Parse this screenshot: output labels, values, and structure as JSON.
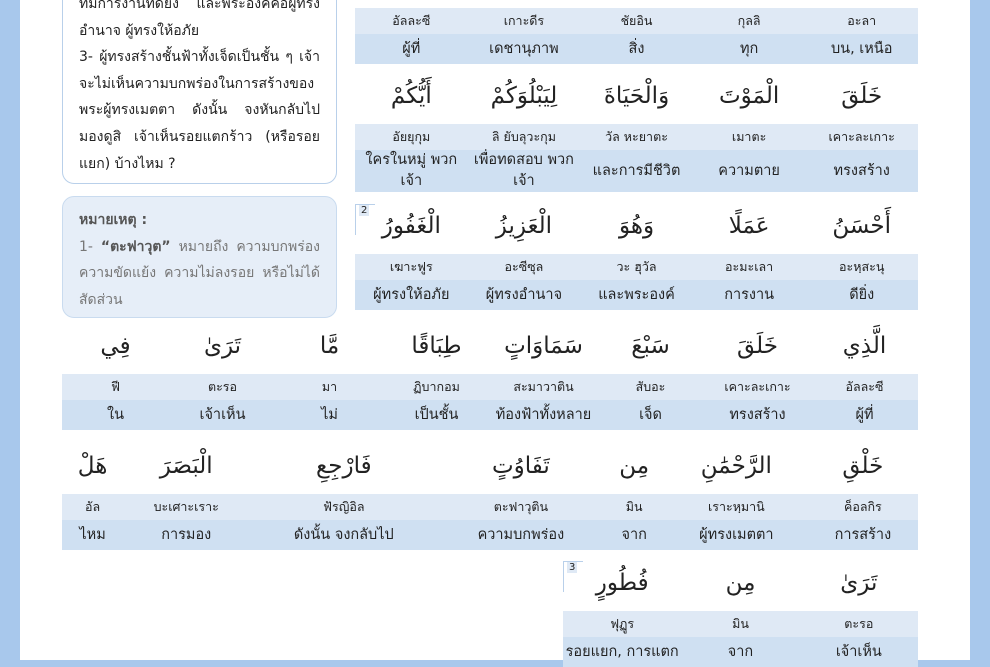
{
  "left_box": {
    "lines": [
      "ทีมีการงานที่ดียิ่ง และพระองค์คือผู้ทรง",
      "อำนาจ ผู้ทรงให้อภัย",
      "3- ผู้ทรงสร้างชั้นฟ้าทั้งเจ็ดเป็นชั้น ๆ เจ้า",
      "จะไม่เห็นความบกพร่องในการสร้างของ",
      "พระผู้ทรงเมตตา ดังนั้น จงหันกลับไป",
      "มองดูสิ เจ้าเห็นรอยแตกร้าว (หรือรอย",
      "แยก) บ้างไหม ?"
    ]
  },
  "note": {
    "title": "หมายเหตุ :",
    "number": "1-",
    "term": "“ตะฟาวุต”",
    "text": "หมายถึง ความบกพร่อง ความขัดแย้ง ความไม่ลงรอย หรือไม่ได้สัดส่วน"
  },
  "blocks": [
    {
      "translit": [
        "อะลา",
        "กุลลิ",
        "ชัยอิน",
        "เกาะดีร",
        "อัลละซี"
      ],
      "meaning": [
        "บน, เหนือ",
        "ทุก",
        "สิ่ง",
        "เดชานุภาพ",
        "ผู้ที่"
      ]
    },
    {
      "arabic": [
        "خَلَقَ",
        "الْمَوْتَ",
        "وَالْحَيَاةَ",
        "لِيَبْلُوَكُمْ",
        "أَيُّكُمْ"
      ],
      "translit": [
        "เคาะละเกาะ",
        "เมาตะ",
        "วัล หะยาตะ",
        "ลิ ยับลุวะกุม",
        "อัยยุกุม"
      ],
      "meaning": [
        "ทรงสร้าง",
        "ความตาย",
        "และการมีชีวิต",
        "เพื่อทดสอบ พวกเจ้า",
        "ใครในหมู่ พวกเจ้า"
      ]
    },
    {
      "verse": "2",
      "arabic": [
        "أَحْسَنُ",
        "عَمَلًا",
        "وَهُوَ",
        "الْعَزِيزُ",
        "الْغَفُورُ"
      ],
      "translit": [
        "อะหฺสะนุ",
        "อะมะเลา",
        "วะ ฮุวัล",
        "อะซีซุล",
        "เฆาะฟูร"
      ],
      "meaning": [
        "ดียิ่ง",
        "การงาน",
        "และพระองค์",
        "ผู้ทรงอำนาจ",
        "ผู้ทรงให้อภัย"
      ]
    },
    {
      "arabic": [
        "الَّذِي",
        "خَلَقَ",
        "سَبْعَ",
        "سَمَاوَاتٍ",
        "طِبَاقًا",
        "مَّا",
        "تَرَىٰ",
        "فِي"
      ],
      "translit": [
        "อัลละซี",
        "เคาะละเกาะ",
        "สับอะ",
        "สะมาวาติน",
        "ฏิบากอม",
        "มา",
        "ตะรอ",
        "ฟี"
      ],
      "meaning": [
        "ผู้ที่",
        "ทรงสร้าง",
        "เจ็ด",
        "ท้องฟ้าทั้งหลาย",
        "เป็นชั้น",
        "ไม่",
        "เจ้าเห็น",
        "ใน"
      ]
    },
    {
      "arabic": [
        "خَلْقِ",
        "الرَّحْمَٰنِ",
        "مِن",
        "تَفَاوُتٍ",
        "فَارْجِعِ",
        "الْبَصَرَ",
        "هَلْ"
      ],
      "translit": [
        "ค็อลกิร",
        "เราะหฺมานิ",
        "มิน",
        "ตะฟาวุติน",
        "ฟัรญิอิล",
        "บะเศาะเราะ",
        "อัล"
      ],
      "meaning": [
        "การสร้าง",
        "ผู้ทรงเมตตา",
        "จาก",
        "ความบกพร่อง",
        "ดังนั้น จงกลับไป",
        "การมอง",
        "ไหม"
      ]
    },
    {
      "verse": "3",
      "arabic": [
        "تَرَىٰ",
        "مِن",
        "فُطُورٍ"
      ],
      "translit": [
        "ตะรอ",
        "มิน",
        "ฟุฏูร"
      ],
      "meaning": [
        "เจ้าเห็น",
        "จาก",
        "รอยแยก, การแตก"
      ]
    }
  ]
}
